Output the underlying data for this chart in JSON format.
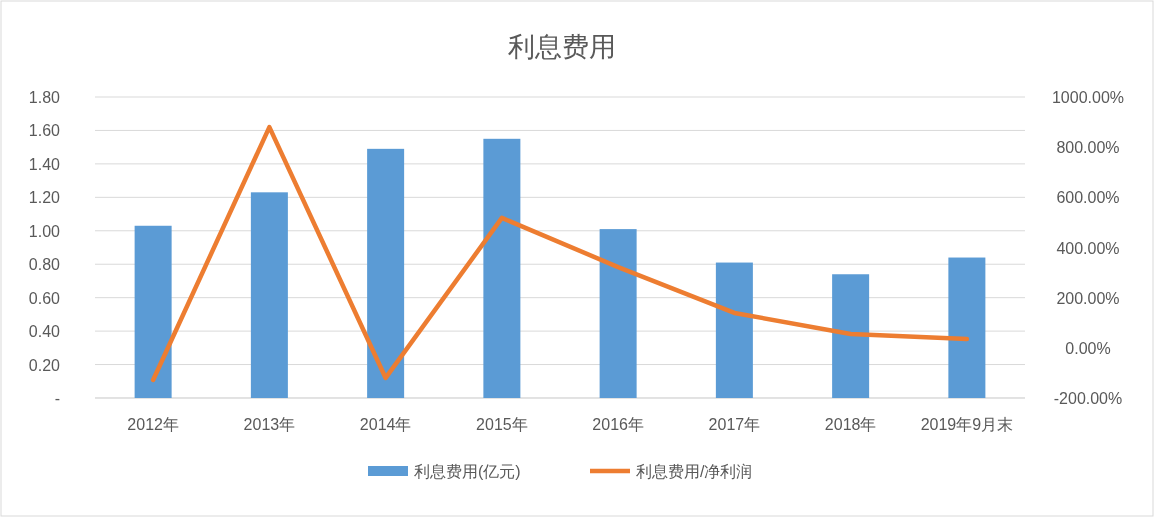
{
  "chart_data": {
    "type": "bar",
    "title": "利息费用",
    "categories": [
      "2012年",
      "2013年",
      "2014年",
      "2015年",
      "2016年",
      "2017年",
      "2018年",
      "2019年9月末"
    ],
    "series": [
      {
        "name": "利息费用(亿元)",
        "color": "#5b9bd5",
        "values": [
          1.03,
          1.23,
          1.49,
          1.55,
          1.01,
          0.81,
          0.74,
          0.84
        ]
      },
      {
        "name": "利息费用/净利润",
        "type": "line",
        "axis": "y2",
        "color": "#ed7d31",
        "values": [
          -128,
          880,
          -120,
          518,
          322,
          139,
          55,
          35
        ]
      }
    ],
    "ylim": [
      0,
      1.8
    ],
    "yticks": [
      {
        "value": 0,
        "label": "-"
      },
      {
        "value": 0.2,
        "label": "0.20"
      },
      {
        "value": 0.4,
        "label": "0.40"
      },
      {
        "value": 0.6,
        "label": "0.60"
      },
      {
        "value": 0.8,
        "label": "0.80"
      },
      {
        "value": 1.0,
        "label": "1.00"
      },
      {
        "value": 1.2,
        "label": "1.20"
      },
      {
        "value": 1.4,
        "label": "1.40"
      },
      {
        "value": 1.6,
        "label": "1.60"
      },
      {
        "value": 1.8,
        "label": "1.80"
      }
    ],
    "y2lim": [
      -200,
      1000
    ],
    "y2ticks": [
      {
        "value": -200,
        "label": "-200.00%"
      },
      {
        "value": 0,
        "label": "0.00%"
      },
      {
        "value": 200,
        "label": "200.00%"
      },
      {
        "value": 400,
        "label": "400.00%"
      },
      {
        "value": 600,
        "label": "600.00%"
      },
      {
        "value": 800,
        "label": "800.00%"
      },
      {
        "value": 1000,
        "label": "1000.00%"
      }
    ],
    "grid": "y",
    "legend": "bottom"
  }
}
